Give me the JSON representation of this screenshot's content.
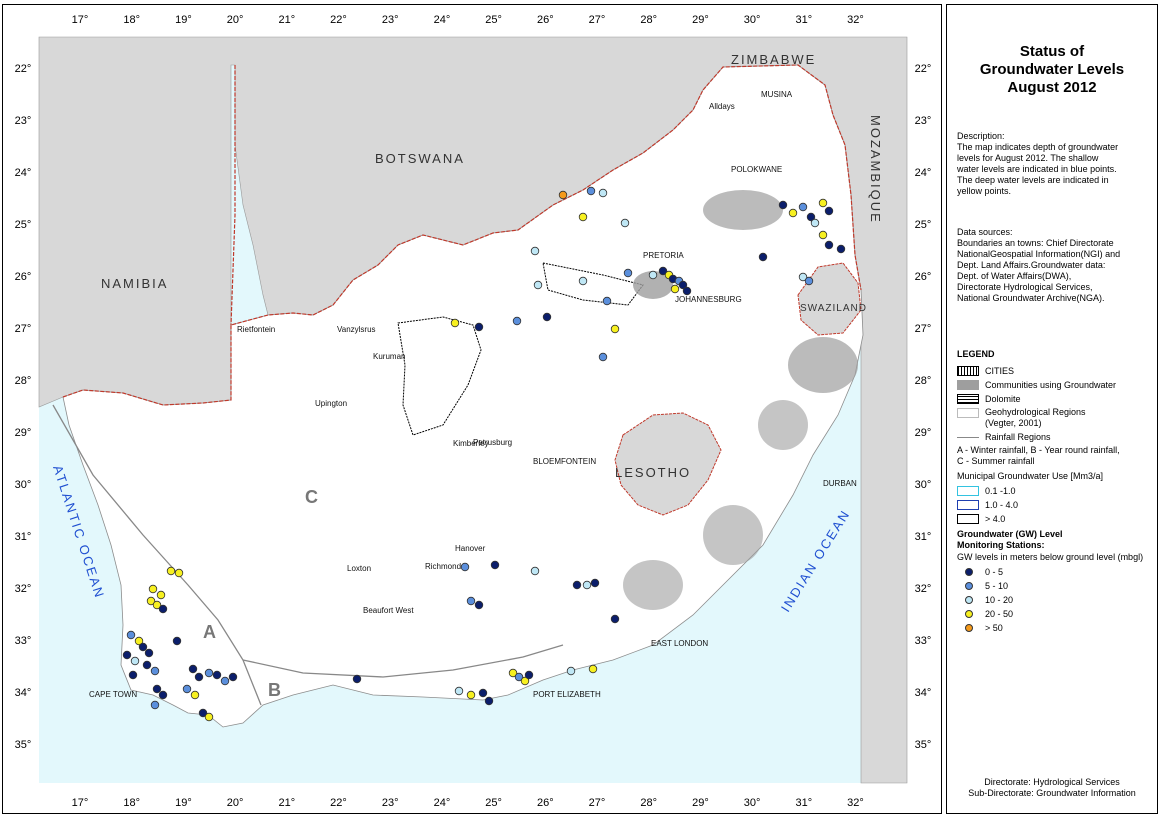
{
  "title_lines": [
    "Status of",
    "Groundwater Levels",
    "August 2012"
  ],
  "description_lines": [
    "Description:",
    "The map indicates depth of groundwater",
    "levels for August 2012. The shallow",
    "water levels are indicated in blue points.",
    "The deep water levels are indicated in",
    "yellow points."
  ],
  "sources_lines": [
    "Data sources:",
    "Boundaries an towns: Chief Directorate",
    "NationalGeospatial Information(NGI) and",
    "Dept. Land Affairs.Groundwater data:",
    "Dept. of Water Affairs(DWA),",
    "Directorate Hydrological Services,",
    "National Groundwater Archive(NGA)."
  ],
  "legend": {
    "heading": "LEGEND",
    "cities": "CITIES",
    "communities": "Communities using Groundwater",
    "dolomite": "Dolomite",
    "geohydro_line1": "Geohydrological Regions",
    "geohydro_line2": "(Vegter, 2001)",
    "rainfall": "Rainfall Regions",
    "rainfall_desc1": "A - Winter rainfall, B - Year round rainfall,",
    "rainfall_desc2": "C - Summer rainfall",
    "use_heading": "Municipal Groundwater Use [Mm3/a]",
    "use_classes": [
      {
        "label": "0.1 -1.0",
        "color": "#33c3e0"
      },
      {
        "label": "1.0 - 4.0",
        "color": "#1f3fb0"
      },
      {
        "label": "> 4.0",
        "color": "#000000"
      }
    ],
    "gw_heading1": "Groundwater (GW) Level",
    "gw_heading2": "Monitoring Stations:",
    "gw_sub": "GW levels in meters below ground level (mbgl)",
    "gw_classes": [
      {
        "label": "0 - 5",
        "color": "#0b1e6b"
      },
      {
        "label": "5 - 10",
        "color": "#5b8fdc"
      },
      {
        "label": "10 - 20",
        "color": "#bfe7f5"
      },
      {
        "label": "20 - 50",
        "color": "#f7f020"
      },
      {
        "label": "> 50",
        "color": "#f59a1b"
      }
    ]
  },
  "footer_lines": [
    "Directorate: Hydrological Services",
    "Sub-Directorate: Groundwater Information"
  ],
  "map": {
    "lon_ticks": [
      "17°",
      "18°",
      "19°",
      "20°",
      "21°",
      "22°",
      "23°",
      "24°",
      "25°",
      "26°",
      "27°",
      "28°",
      "29°",
      "30°",
      "31°",
      "32°"
    ],
    "lat_ticks": [
      "22°",
      "23°",
      "24°",
      "25°",
      "26°",
      "27°",
      "28°",
      "29°",
      "30°",
      "31°",
      "32°",
      "33°",
      "34°",
      "35°"
    ],
    "countries": {
      "zimbabwe": "ZIMBABWE",
      "botswana": "BOTSWANA",
      "namibia": "NAMIBIA",
      "mozambique": "MOZAMBIQUE",
      "swaziland": "SWAZILAND",
      "lesotho": "LESOTHO"
    },
    "oceans": {
      "atlantic": "ATLANTIC OCEAN",
      "indian": "INDIAN OCEAN"
    },
    "regions": {
      "a": "A",
      "b": "B",
      "c": "C"
    },
    "towns": {
      "alldays": "Alldays",
      "musina": "MUSINA",
      "polokwane": "POLOKWANE",
      "pretoria": "PRETORIA",
      "johannesburg": "JOHANNESBURG",
      "riettfontein": "Rietfontein",
      "vanzylsrus": "Vanzylsrus",
      "kuruman": "Kuruman",
      "upington": "Upington",
      "kimberley": "Kimberley",
      "petrusburg": "Petrusburg",
      "bloemfontein": "BLOEMFONTEIN",
      "durban": "DURBAN",
      "hanover": "Hanover",
      "loxton": "Loxton",
      "richmond": "Richmond",
      "beaufort_west": "Beaufort West",
      "east_london": "EAST LONDON",
      "port_elizabeth": "PORT ELIZABETH",
      "cape_town": "CAPE TOWN"
    }
  }
}
